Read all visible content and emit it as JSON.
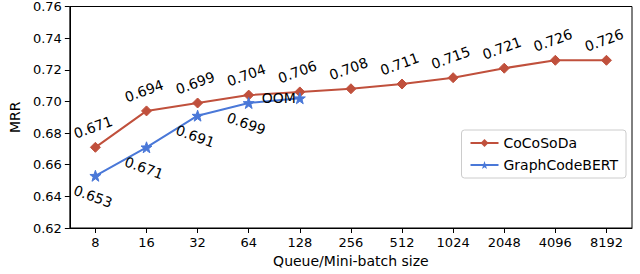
{
  "chart_data": {
    "type": "line",
    "x_label": "Queue/Mini-batch size",
    "y_label": "MRR",
    "categories": [
      "8",
      "16",
      "32",
      "64",
      "128",
      "256",
      "512",
      "1024",
      "2048",
      "4096",
      "8192"
    ],
    "series": [
      {
        "name": "CoCoSoDa",
        "color": "#c0503c",
        "marker": "diamond",
        "values": [
          0.671,
          0.694,
          0.699,
          0.704,
          0.706,
          0.708,
          0.711,
          0.715,
          0.721,
          0.726,
          0.726
        ]
      },
      {
        "name": "GraphCodeBERT",
        "color": "#4a78d8",
        "marker": "star",
        "values": [
          0.653,
          0.671,
          0.691,
          0.699,
          0.702,
          null,
          null,
          null,
          null,
          null,
          null
        ]
      }
    ],
    "annotations": [
      {
        "text": "OOM",
        "series": "GraphCodeBERT",
        "x": "128"
      }
    ],
    "ylim": [
      0.62,
      0.76
    ],
    "yticks": [
      0.62,
      0.64,
      0.66,
      0.68,
      {
        "value": 0.7,
        "label": "0.70"
      },
      0.72,
      0.74,
      0.76
    ],
    "grid": false,
    "legend": "lower right",
    "data_labels": true
  }
}
